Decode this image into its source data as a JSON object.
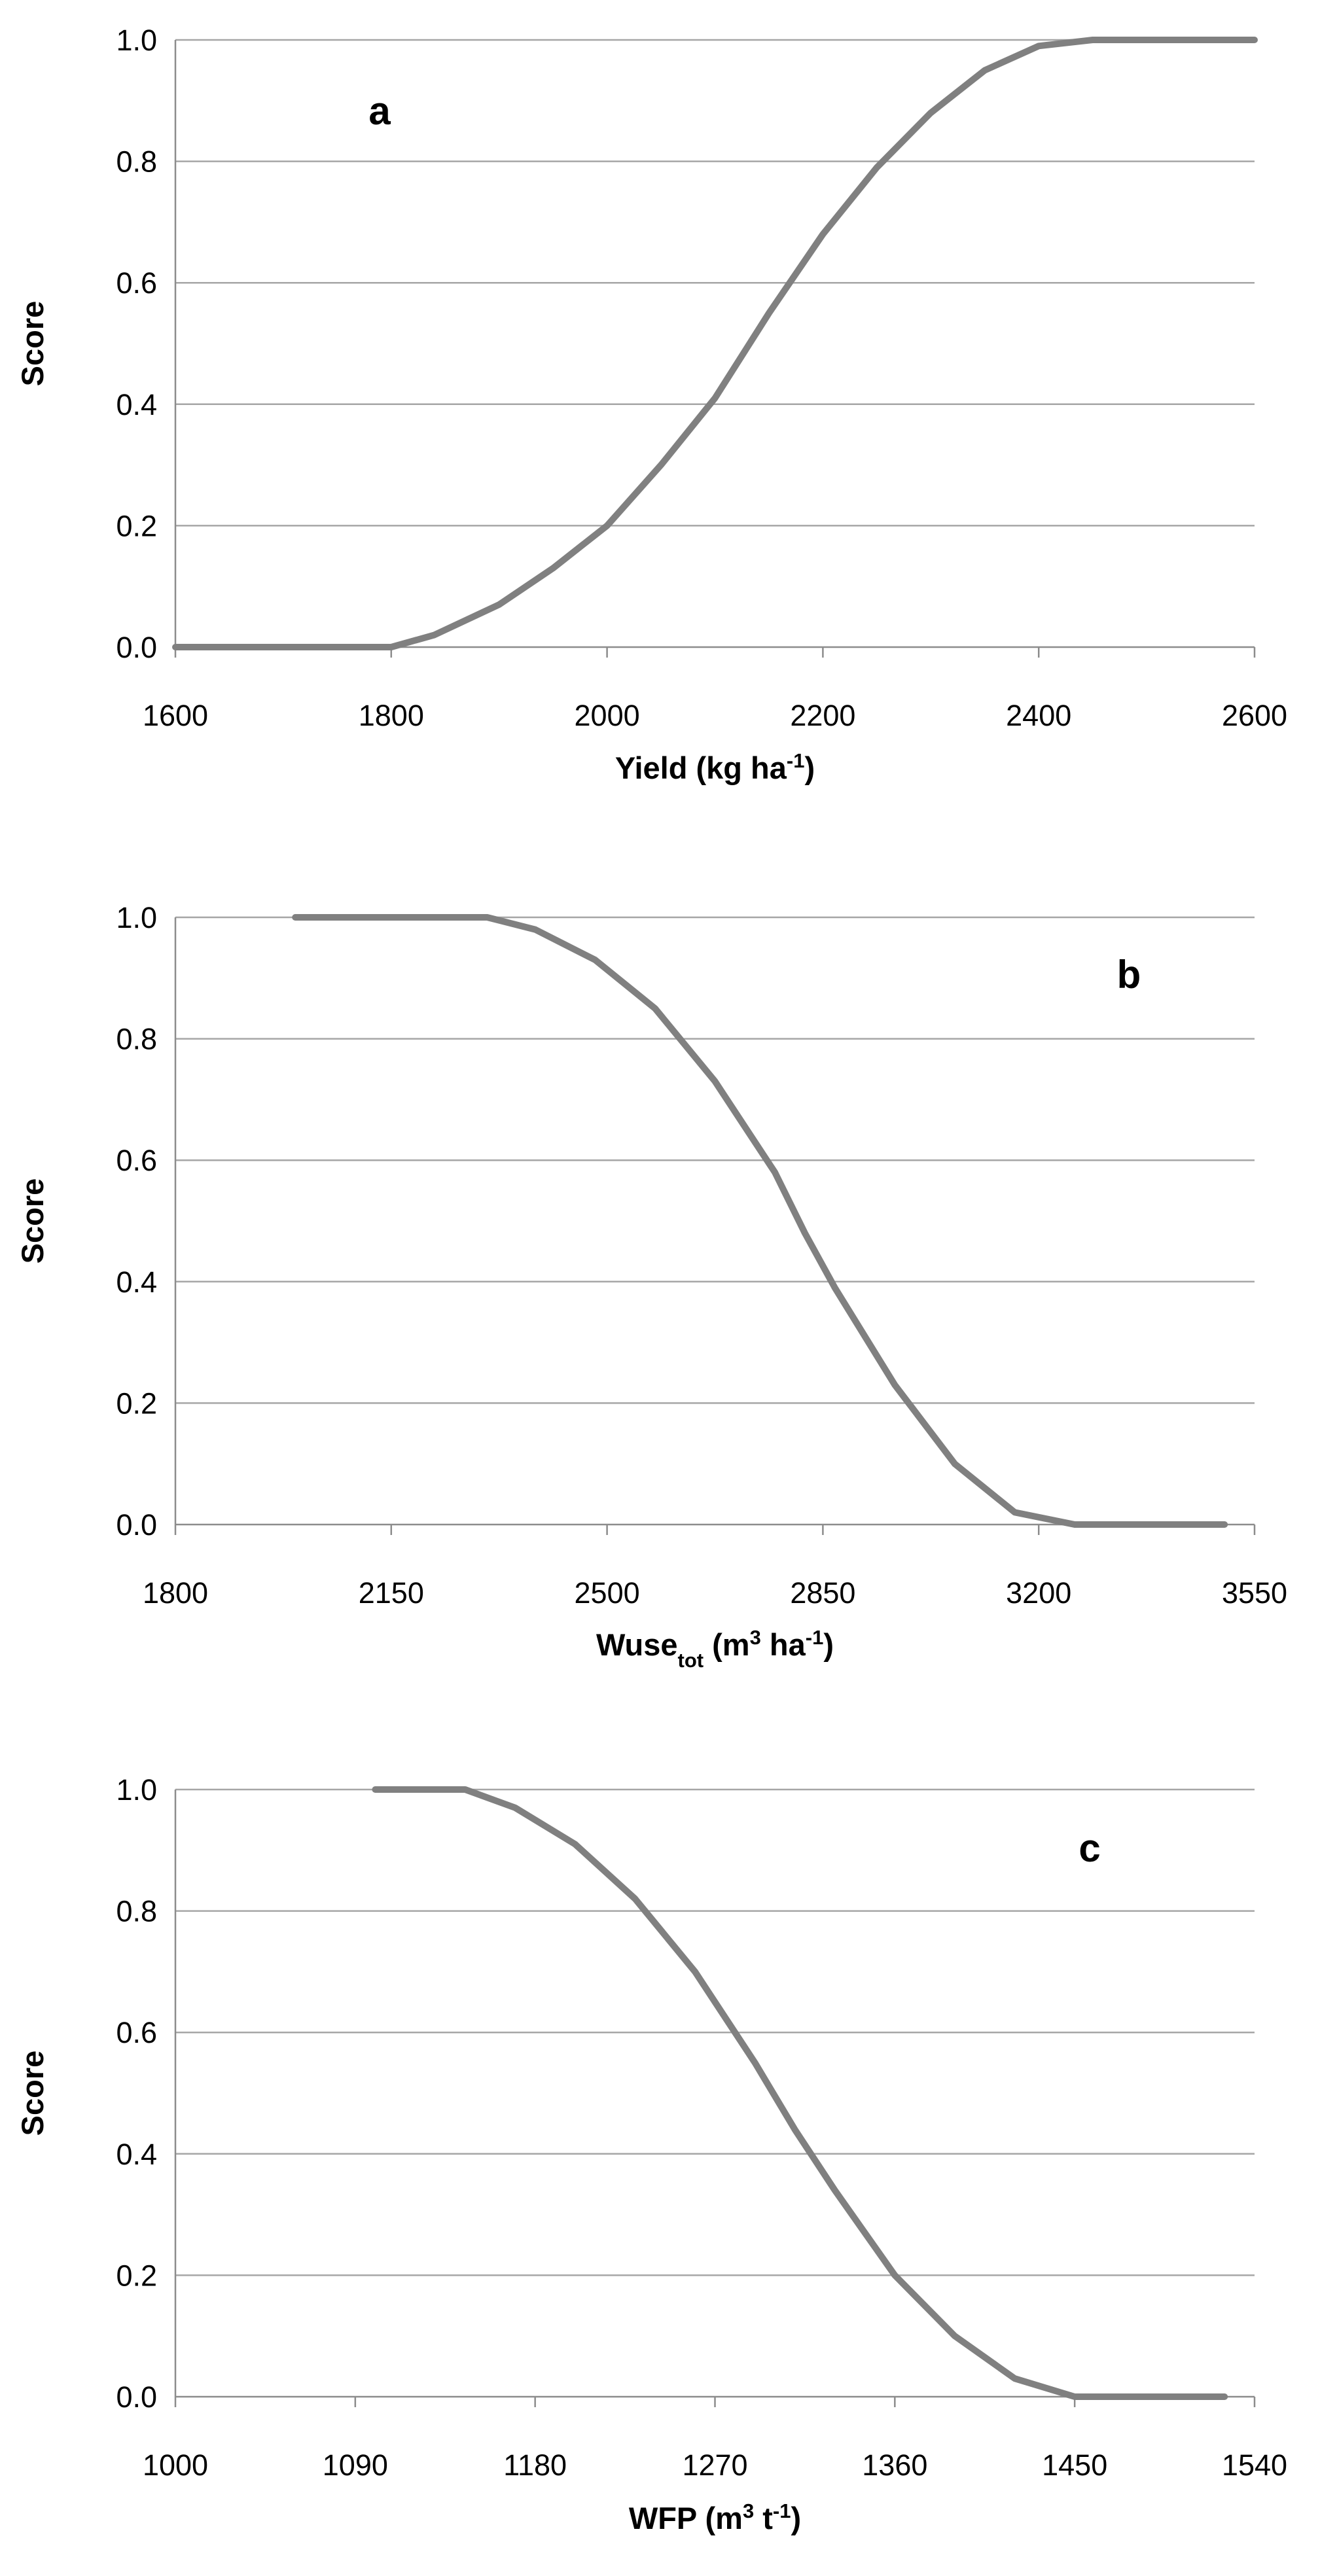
{
  "chart_data": [
    {
      "type": "line",
      "panel_label": "a",
      "xlabel": {
        "main": "Yield (kg ha",
        "sup": "-1",
        "close": ")"
      },
      "ylabel": "Score",
      "xlim": [
        1600,
        2600
      ],
      "ylim": [
        0,
        1
      ],
      "x_ticks": [
        "1600",
        "1800",
        "2000",
        "2200",
        "2400",
        "2600"
      ],
      "y_ticks": [
        "0.0",
        "0.2",
        "0.4",
        "0.6",
        "0.8",
        "1.0"
      ],
      "grid": true,
      "series": [
        {
          "x": [
            1600,
            1800,
            1840,
            1900,
            1950,
            2000,
            2050,
            2100,
            2150,
            2200,
            2250,
            2300,
            2350,
            2400,
            2450,
            2600
          ],
          "y": [
            0,
            0,
            0.02,
            0.07,
            0.13,
            0.2,
            0.3,
            0.41,
            0.55,
            0.68,
            0.79,
            0.88,
            0.95,
            0.99,
            1.0,
            1.0
          ]
        }
      ]
    },
    {
      "type": "line",
      "panel_label": "b",
      "xlabel": {
        "main": "Wuse",
        "sub": "tot",
        "mid": " (m",
        "sup1": "3",
        "mid2": " ha",
        "sup2": "-1",
        "close": ")"
      },
      "ylabel": "Score",
      "xlim": [
        1800,
        3600
      ],
      "ylim": [
        0,
        1
      ],
      "x_ticks": [
        "1800",
        "2150",
        "2500",
        "2850",
        "3200",
        "3550"
      ],
      "y_ticks": [
        "0.0",
        "0.2",
        "0.4",
        "0.6",
        "0.8",
        "1.0"
      ],
      "grid": true,
      "series": [
        {
          "x": [
            2000,
            2320,
            2400,
            2500,
            2600,
            2700,
            2800,
            2850,
            2900,
            3000,
            3100,
            3200,
            3300,
            3550
          ],
          "y": [
            1.0,
            1.0,
            0.98,
            0.93,
            0.85,
            0.73,
            0.58,
            0.48,
            0.39,
            0.23,
            0.1,
            0.02,
            0,
            0
          ]
        }
      ]
    },
    {
      "type": "line",
      "panel_label": "c",
      "xlabel": {
        "main": "WFP (m",
        "sup1": "3",
        "mid": " t",
        "sup2": "-1",
        "close": ")"
      },
      "ylabel": "Score",
      "xlim": [
        1000,
        1540
      ],
      "ylim": [
        0,
        1
      ],
      "x_ticks": [
        "1000",
        "1090",
        "1180",
        "1270",
        "1360",
        "1450",
        "1540"
      ],
      "y_ticks": [
        "0.0",
        "0.2",
        "0.4",
        "0.6",
        "0.8",
        "1.0"
      ],
      "grid": true,
      "series": [
        {
          "x": [
            1100,
            1145,
            1170,
            1200,
            1230,
            1260,
            1290,
            1310,
            1330,
            1360,
            1390,
            1420,
            1450,
            1525
          ],
          "y": [
            1.0,
            1.0,
            0.97,
            0.91,
            0.82,
            0.7,
            0.55,
            0.44,
            0.34,
            0.2,
            0.1,
            0.03,
            0,
            0
          ]
        }
      ]
    }
  ]
}
